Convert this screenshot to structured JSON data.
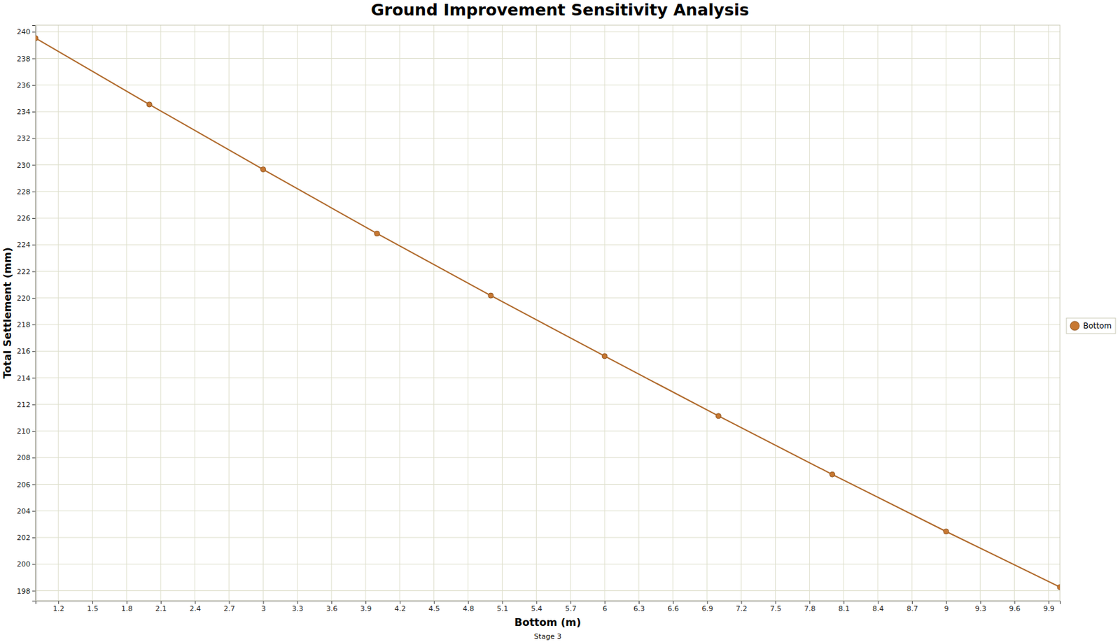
{
  "chart_data": {
    "type": "line",
    "title": "Ground Improvement Sensitivity Analysis",
    "subtitle": "Stage 3",
    "x_label": "Bottom (m)",
    "y_label": "Total Settlement (mm)",
    "x": [
      1,
      2,
      3,
      4,
      5,
      6,
      7,
      8,
      9,
      10
    ],
    "series": [
      {
        "name": "Bottom",
        "color": "#b06a2c",
        "marker": "circle",
        "line_style": "solid",
        "values": [
          239.52,
          234.54,
          229.66,
          224.84,
          220.18,
          215.63,
          211.13,
          206.74,
          202.45,
          198.27
        ]
      }
    ],
    "xlim": [
      1,
      10
    ],
    "ylim": [
      197.25,
      240.5
    ],
    "xticks": [
      1.2,
      1.5,
      1.8,
      2.1,
      2.4,
      2.7,
      3,
      3.3,
      3.6,
      3.9,
      4.2,
      4.5,
      4.8,
      5.1,
      5.4,
      5.7,
      6,
      6.3,
      6.6,
      6.9,
      7.2,
      7.5,
      7.8,
      8.1,
      8.4,
      8.7,
      9,
      9.3,
      9.6,
      9.9
    ],
    "yticks": [
      198,
      200,
      202,
      204,
      206,
      208,
      210,
      212,
      214,
      216,
      218,
      220,
      222,
      224,
      226,
      228,
      230,
      232,
      234,
      236,
      238,
      240
    ],
    "grid": true,
    "legend": "right"
  }
}
